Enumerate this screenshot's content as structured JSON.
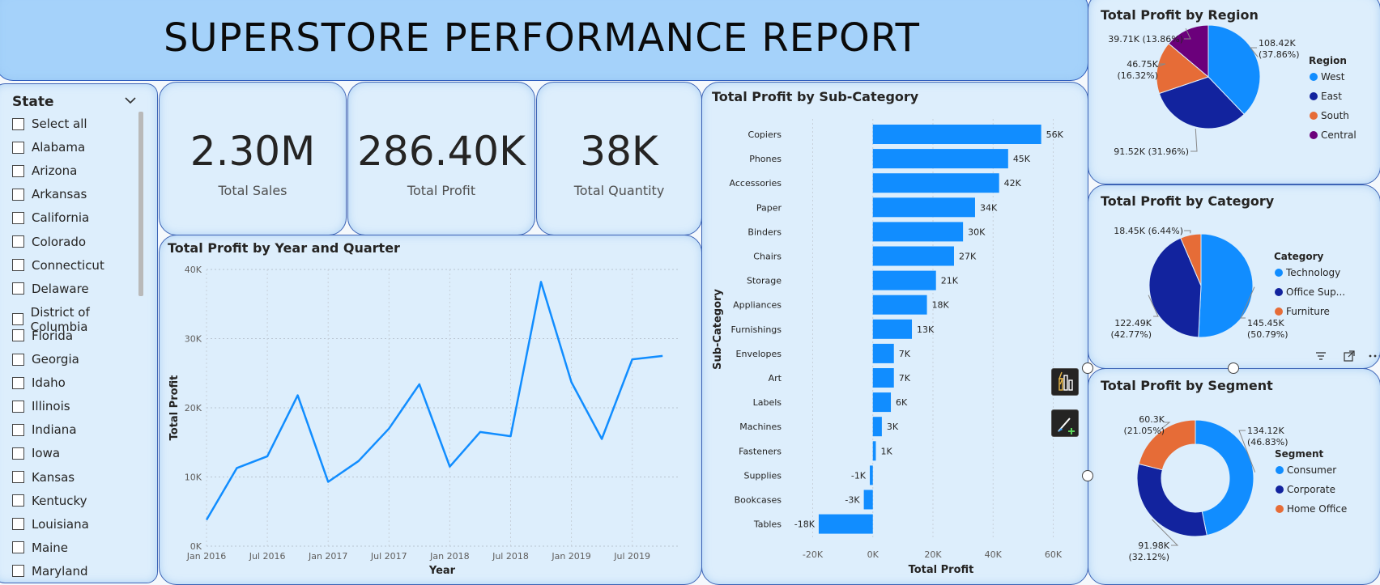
{
  "header": {
    "title": "SUPERSTORE PERFORMANCE REPORT"
  },
  "slicer": {
    "title": "State",
    "items": [
      "Select all",
      "Alabama",
      "Arizona",
      "Arkansas",
      "California",
      "Colorado",
      "Connecticut",
      "Delaware",
      "District of Columbia",
      "Florida",
      "Georgia",
      "Idaho",
      "Illinois",
      "Indiana",
      "Iowa",
      "Kansas",
      "Kentucky",
      "Louisiana",
      "Maine",
      "Maryland"
    ]
  },
  "kpis": [
    {
      "value": "2.30M",
      "label": "Total Sales"
    },
    {
      "value": "286.40K",
      "label": "Total Profit"
    },
    {
      "value": "38K",
      "label": "Total Quantity"
    }
  ],
  "visuals": {
    "line_title": "Total Profit by Year and Quarter",
    "bar_title": "Total Profit by Sub-Category",
    "region_title": "Total Profit by Region",
    "category_title": "Total Profit by Category",
    "segment_title": "Total Profit by Segment"
  },
  "colors": {
    "blue": "#118dff",
    "navy": "#12239e",
    "orange": "#e66c37",
    "purple": "#6b007b",
    "accent_border": "#3c63b5"
  },
  "icons": [
    "filter-icon",
    "focus-mode-icon",
    "more-options-icon",
    "quick-insights-icon",
    "format-paint-icon",
    "chevron-down-icon"
  ],
  "chart_data": [
    {
      "type": "line",
      "xlabel": "Year",
      "ylabel": "Total Profit",
      "x_ticks": [
        "Jan 2016",
        "Jul 2016",
        "Jan 2017",
        "Jul 2017",
        "Jan 2018",
        "Jul 2018",
        "Jan 2019",
        "Jul 2019"
      ],
      "y_ticks": [
        "0K",
        "10K",
        "20K",
        "30K",
        "40K"
      ],
      "ylim": [
        0,
        40000
      ],
      "grid": true,
      "x": [
        "2016 Q1",
        "2016 Q2",
        "2016 Q3",
        "2016 Q4",
        "2017 Q1",
        "2017 Q2",
        "2017 Q3",
        "2017 Q4",
        "2018 Q1",
        "2018 Q2",
        "2018 Q3",
        "2018 Q4",
        "2019 Q1",
        "2019 Q2",
        "2019 Q3",
        "2019 Q4"
      ],
      "values": [
        3800,
        11300,
        13000,
        21800,
        9300,
        12300,
        17000,
        23400,
        11500,
        16500,
        15900,
        38200,
        23700,
        15500,
        27000,
        27500
      ]
    },
    {
      "type": "bar",
      "orientation": "horizontal",
      "xlabel": "Total Profit",
      "ylabel": "Sub-Category",
      "x_ticks": [
        "-20K",
        "0K",
        "20K",
        "40K",
        "60K"
      ],
      "xlim": [
        -20000,
        60000
      ],
      "categories": [
        "Copiers",
        "Phones",
        "Accessories",
        "Paper",
        "Binders",
        "Chairs",
        "Storage",
        "Appliances",
        "Furnishings",
        "Envelopes",
        "Art",
        "Labels",
        "Machines",
        "Fasteners",
        "Supplies",
        "Bookcases",
        "Tables"
      ],
      "values": [
        56000,
        45000,
        42000,
        34000,
        30000,
        27000,
        21000,
        18000,
        13000,
        7000,
        7000,
        6000,
        3000,
        1000,
        -1000,
        -3000,
        -18000
      ],
      "data_labels": [
        "56K",
        "45K",
        "42K",
        "34K",
        "30K",
        "27K",
        "21K",
        "18K",
        "13K",
        "7K",
        "7K",
        "6K",
        "3K",
        "1K",
        "-1K",
        "-3K",
        "-18K"
      ]
    },
    {
      "type": "pie",
      "legend_title": "Region",
      "legend_position": "right",
      "slices": [
        {
          "name": "West",
          "value": 108.42,
          "label": [
            "108.42K",
            "(37.86%)"
          ],
          "color": "#118dff"
        },
        {
          "name": "East",
          "value": 91.52,
          "label": [
            "91.52K (31.96%)"
          ],
          "color": "#12239e"
        },
        {
          "name": "South",
          "value": 46.75,
          "label": [
            "46.75K",
            "(16.32%)"
          ],
          "color": "#e66c37"
        },
        {
          "name": "Central",
          "value": 39.71,
          "label": [
            "39.71K (13.86%)"
          ],
          "color": "#6b007b"
        }
      ]
    },
    {
      "type": "pie",
      "legend_title": "Category",
      "legend_position": "right",
      "slices": [
        {
          "name": "Technology",
          "value": 145.45,
          "label": [
            "145.45K",
            "(50.79%)"
          ],
          "color": "#118dff"
        },
        {
          "name": "Office Sup...",
          "value": 122.49,
          "label": [
            "122.49K",
            "(42.77%)"
          ],
          "color": "#12239e"
        },
        {
          "name": "Furniture",
          "value": 18.45,
          "label": [
            "18.45K (6.44%)"
          ],
          "color": "#e66c37"
        }
      ]
    },
    {
      "type": "donut",
      "legend_title": "Segment",
      "legend_position": "right",
      "slices": [
        {
          "name": "Consumer",
          "value": 134.12,
          "label": [
            "134.12K",
            "(46.83%)"
          ],
          "color": "#118dff"
        },
        {
          "name": "Corporate",
          "value": 91.98,
          "label": [
            "91.98K",
            "(32.12%)"
          ],
          "color": "#12239e"
        },
        {
          "name": "Home Office",
          "value": 60.3,
          "label": [
            "60.3K",
            "(21.05%)"
          ],
          "color": "#e66c37"
        }
      ]
    }
  ]
}
